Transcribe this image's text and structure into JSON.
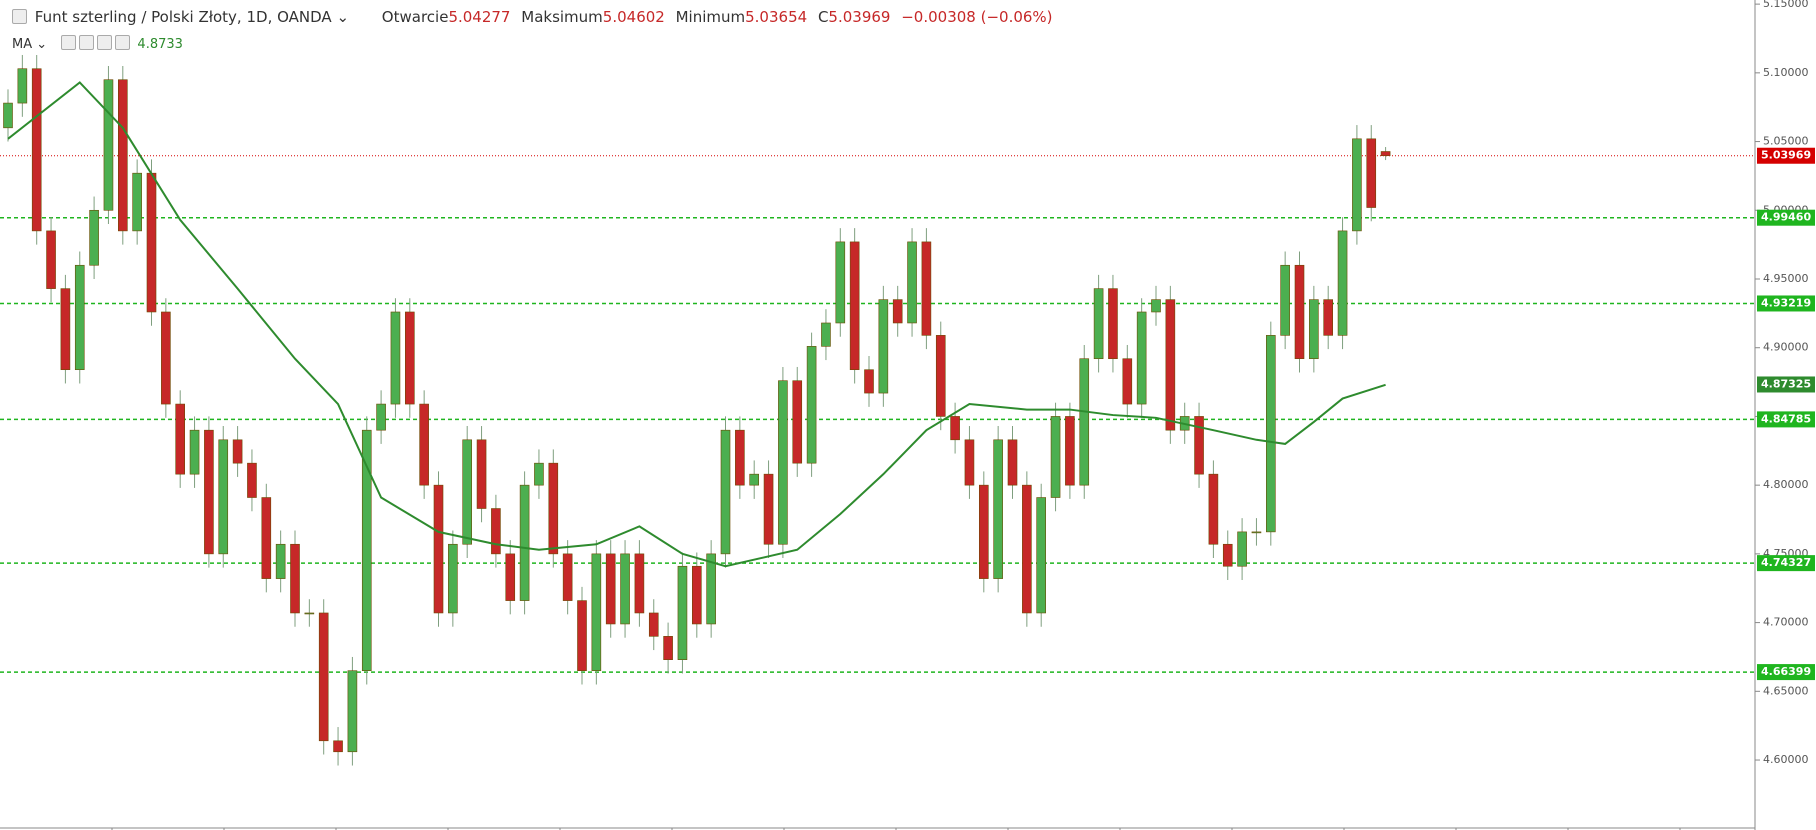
{
  "chart_data": {
    "type": "candlestick",
    "title": "Funt szterling / Polski Złoty, 1D, OANDA",
    "ohlc_labels": {
      "open": "Otwarcie",
      "high": "Maksimum",
      "low": "Minimum",
      "close": "C"
    },
    "ohlc_values": {
      "open": "5.04277",
      "high": "5.04602",
      "low": "5.03654",
      "close": "5.03969"
    },
    "change": "−0.00308 (−0.06%)",
    "up_color": "#4caf50",
    "down_color": "#c62828",
    "open": [
      5.06,
      5.078,
      5.103,
      4.985,
      4.943,
      4.884,
      4.96,
      5.0,
      5.095,
      4.985,
      5.027,
      4.926,
      4.859,
      4.808,
      4.84,
      4.75,
      4.833,
      4.816,
      4.791,
      4.732,
      4.757,
      4.707,
      4.707,
      4.614,
      4.606,
      4.665,
      4.84,
      4.859,
      4.926,
      4.859,
      4.8,
      4.707,
      4.757,
      4.833,
      4.783,
      4.75,
      4.716,
      4.8,
      4.816,
      4.75,
      4.716,
      4.665,
      4.75,
      4.699,
      4.75,
      4.707,
      4.69,
      4.673,
      4.741,
      4.699,
      4.75,
      4.84,
      4.8,
      4.808,
      4.757,
      4.876,
      4.816,
      4.901,
      4.918,
      4.977,
      4.884,
      4.867,
      4.935,
      4.918,
      4.977,
      4.909,
      4.85,
      4.833,
      4.8,
      4.732,
      4.833,
      4.8,
      4.707,
      4.791,
      4.85,
      4.8,
      4.892,
      4.943,
      4.892,
      4.859,
      4.926,
      4.935,
      4.84,
      4.85,
      4.808,
      4.757,
      4.741,
      4.766,
      4.766,
      4.909,
      4.96,
      4.892,
      4.935,
      4.909,
      4.985,
      5.052,
      5.04277
    ],
    "high": [
      5.088,
      5.113,
      5.113,
      4.995,
      4.953,
      4.97,
      5.01,
      5.105,
      5.105,
      5.037,
      5.037,
      4.936,
      4.869,
      4.85,
      4.85,
      4.843,
      4.843,
      4.826,
      4.801,
      4.767,
      4.767,
      4.717,
      4.717,
      4.624,
      4.675,
      4.85,
      4.869,
      4.936,
      4.936,
      4.869,
      4.81,
      4.767,
      4.843,
      4.843,
      4.793,
      4.76,
      4.81,
      4.826,
      4.826,
      4.76,
      4.726,
      4.76,
      4.76,
      4.76,
      4.76,
      4.717,
      4.7,
      4.751,
      4.751,
      4.76,
      4.85,
      4.85,
      4.818,
      4.818,
      4.886,
      4.886,
      4.911,
      4.928,
      4.987,
      4.987,
      4.894,
      4.945,
      4.945,
      4.987,
      4.987,
      4.919,
      4.86,
      4.843,
      4.81,
      4.843,
      4.843,
      4.81,
      4.801,
      4.86,
      4.86,
      4.902,
      4.953,
      4.953,
      4.902,
      4.936,
      4.945,
      4.945,
      4.86,
      4.86,
      4.818,
      4.767,
      4.776,
      4.776,
      4.919,
      4.97,
      4.97,
      4.945,
      4.945,
      4.995,
      5.062,
      5.062,
      5.04602
    ],
    "low": [
      5.05,
      5.068,
      4.975,
      4.933,
      4.874,
      4.874,
      4.95,
      4.99,
      4.975,
      4.975,
      4.916,
      4.849,
      4.798,
      4.798,
      4.74,
      4.74,
      4.806,
      4.781,
      4.722,
      4.722,
      4.697,
      4.697,
      4.604,
      4.596,
      4.596,
      4.655,
      4.83,
      4.849,
      4.849,
      4.79,
      4.697,
      4.697,
      4.747,
      4.773,
      4.74,
      4.706,
      4.706,
      4.79,
      4.74,
      4.706,
      4.655,
      4.655,
      4.689,
      4.689,
      4.697,
      4.68,
      4.663,
      4.663,
      4.689,
      4.689,
      4.74,
      4.79,
      4.79,
      4.747,
      4.747,
      4.806,
      4.806,
      4.891,
      4.908,
      4.874,
      4.857,
      4.857,
      4.908,
      4.908,
      4.899,
      4.84,
      4.823,
      4.79,
      4.722,
      4.722,
      4.79,
      4.697,
      4.697,
      4.781,
      4.79,
      4.79,
      4.882,
      4.882,
      4.849,
      4.849,
      4.916,
      4.83,
      4.83,
      4.798,
      4.747,
      4.731,
      4.731,
      4.756,
      4.756,
      4.899,
      4.882,
      4.882,
      4.899,
      4.899,
      4.975,
      4.992,
      5.03654
    ],
    "close": [
      5.078,
      5.103,
      4.985,
      4.943,
      4.884,
      4.96,
      5.0,
      5.095,
      4.985,
      5.027,
      4.926,
      4.859,
      4.808,
      4.84,
      4.75,
      4.833,
      4.816,
      4.791,
      4.732,
      4.757,
      4.707,
      4.707,
      4.614,
      4.606,
      4.665,
      4.84,
      4.859,
      4.926,
      4.859,
      4.8,
      4.707,
      4.757,
      4.833,
      4.783,
      4.75,
      4.716,
      4.8,
      4.816,
      4.75,
      4.716,
      4.665,
      4.75,
      4.699,
      4.75,
      4.707,
      4.69,
      4.673,
      4.741,
      4.699,
      4.75,
      4.84,
      4.8,
      4.808,
      4.757,
      4.876,
      4.816,
      4.901,
      4.918,
      4.977,
      4.884,
      4.867,
      4.935,
      4.918,
      4.977,
      4.909,
      4.85,
      4.833,
      4.8,
      4.732,
      4.833,
      4.8,
      4.707,
      4.791,
      4.85,
      4.8,
      4.892,
      4.943,
      4.892,
      4.859,
      4.926,
      4.935,
      4.84,
      4.85,
      4.808,
      4.757,
      4.741,
      4.766,
      4.766,
      4.909,
      4.96,
      4.892,
      4.935,
      4.909,
      4.985,
      5.052,
      5.002,
      5.03969
    ],
    "ma": {
      "name": "MA",
      "value_label": "4.8733",
      "color": "#2e8b2e",
      "x": [
        0,
        5,
        8,
        12,
        16,
        20,
        23,
        26,
        30,
        34,
        37,
        41,
        44,
        47,
        50,
        55,
        58,
        61,
        64,
        67,
        71,
        74,
        77,
        80,
        84,
        87,
        89,
        91,
        93,
        96
      ],
      "values": [
        5.052,
        5.093,
        5.06,
        4.993,
        4.943,
        4.892,
        4.859,
        4.791,
        4.766,
        4.757,
        4.753,
        4.757,
        4.77,
        4.75,
        4.741,
        4.753,
        4.779,
        4.808,
        4.84,
        4.859,
        4.855,
        4.855,
        4.851,
        4.849,
        4.84,
        4.833,
        4.83,
        4.846,
        4.863,
        4.873
      ],
      "last": {
        "value": 4.87325,
        "label": "4.87325"
      }
    },
    "last_price": {
      "value": 5.03969,
      "label": "5.03969",
      "color": "#d50000"
    },
    "levels": [
      {
        "value": 4.9946,
        "label": "4.99460"
      },
      {
        "value": 4.93219,
        "label": "4.93219"
      },
      {
        "value": 4.84785,
        "label": "4.84785"
      },
      {
        "value": 4.74327,
        "label": "4.74327"
      },
      {
        "value": 4.66399,
        "label": "4.66399"
      }
    ],
    "level_color": "#1fb51f",
    "ylim": [
      4.552,
      5.153
    ],
    "yticks": [
      {
        "value": 4.6,
        "label": "4.60000"
      },
      {
        "value": 4.65,
        "label": "4.65000"
      },
      {
        "value": 4.7,
        "label": "4.70000"
      },
      {
        "value": 4.75,
        "label": "4.75000"
      },
      {
        "value": 4.8,
        "label": "4.80000"
      },
      {
        "value": 4.85,
        "label": "4.85000"
      },
      {
        "value": 4.9,
        "label": "4.90000"
      },
      {
        "value": 4.95,
        "label": "4.95000"
      },
      {
        "value": 5.0,
        "label": "5.00000"
      },
      {
        "value": 5.05,
        "label": "5.05000"
      },
      {
        "value": 5.1,
        "label": "5.10000"
      },
      {
        "value": 5.15,
        "label": "5.15000"
      }
    ]
  }
}
